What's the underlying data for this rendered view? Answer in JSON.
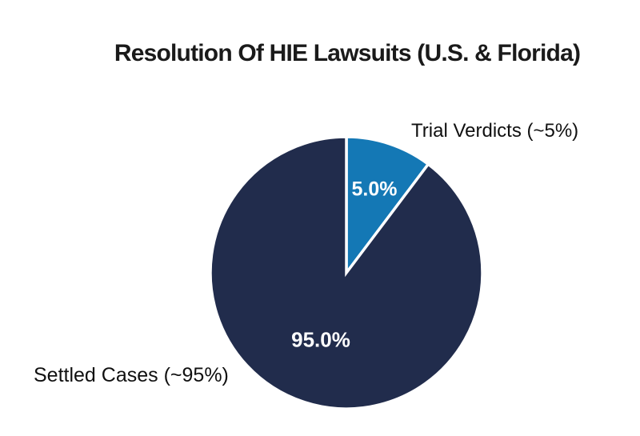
{
  "page": {
    "background_color": "#ffffff"
  },
  "chart_data": {
    "type": "pie",
    "title": "Resolution Of HIE Lawsuits (U.S. & Florida)",
    "slices": [
      {
        "label": "Trial Verdicts (~5%)",
        "value": 5.0,
        "value_label": "5.0%",
        "color": "#1478b5"
      },
      {
        "label": "Settled Cases (~95%)",
        "value": 95.0,
        "value_label": "95.0%",
        "color": "#212c4c"
      }
    ],
    "layout": {
      "legend": "none",
      "start_angle_deg": 0,
      "visual_sweep_deg": [
        37,
        323
      ],
      "slice_divider_color": "#ffffff",
      "value_label_color": "#ffffff",
      "title_position": "top-center",
      "category_label_positions": [
        "outside-top-right",
        "outside-bottom-left"
      ]
    }
  }
}
